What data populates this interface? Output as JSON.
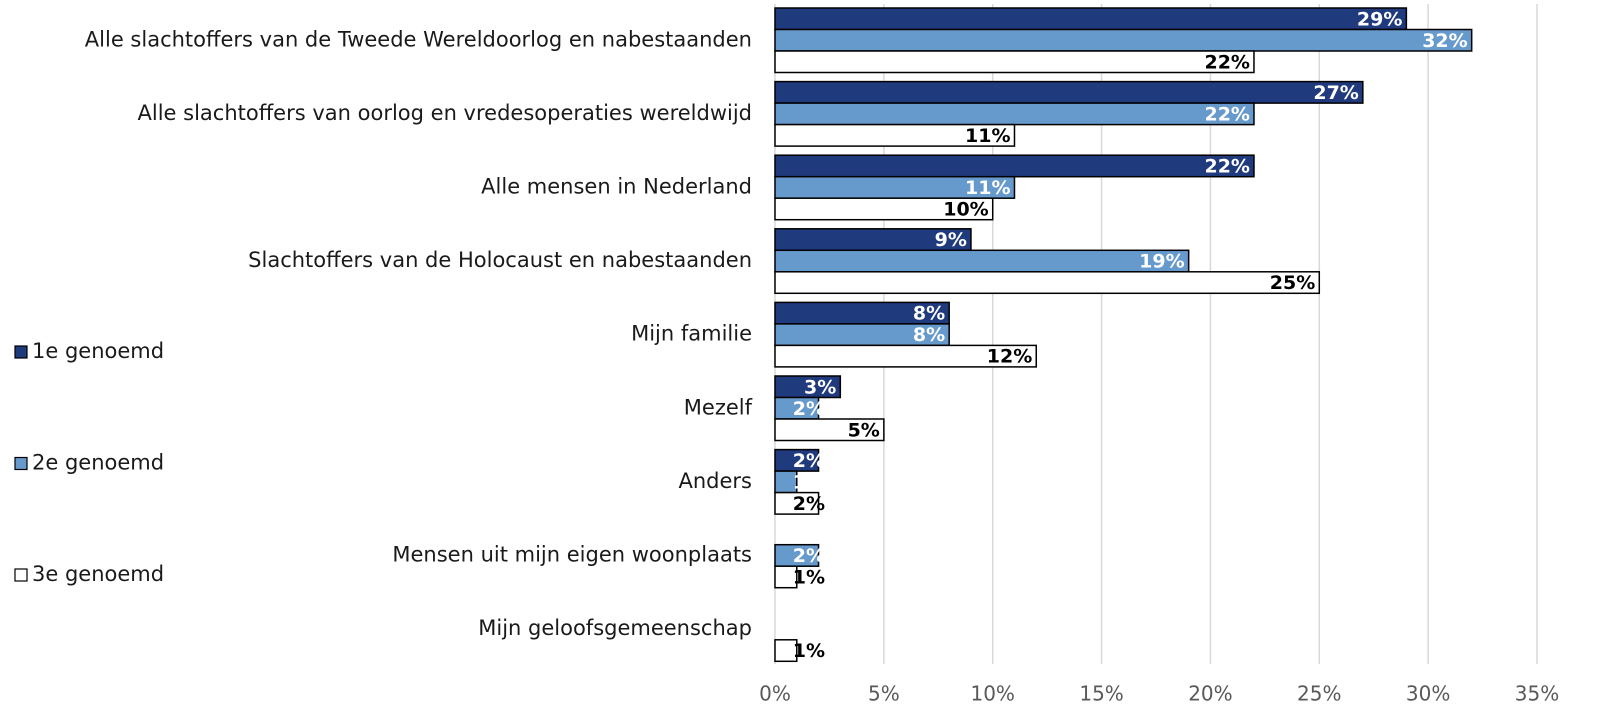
{
  "chart_data": {
    "type": "bar",
    "orientation": "horizontal",
    "categories": [
      "Alle slachtoffers van de Tweede Wereldoorlog en nabestaanden",
      "Alle slachtoffers van oorlog en vredesoperaties wereldwijd",
      "Alle mensen in Nederland",
      "Slachtoffers van de Holocaust en nabestaanden",
      "Mijn familie",
      "Mezelf",
      "Anders",
      "Mensen uit mijn eigen woonplaats",
      "Mijn geloofsgemeenschap"
    ],
    "series": [
      {
        "name": "1e genoemd",
        "color": "#203a7e",
        "values": [
          29,
          27,
          22,
          9,
          8,
          3,
          2,
          null,
          null
        ],
        "value_labels": [
          "29%",
          "27%",
          "22%",
          "9%",
          "8%",
          "3%",
          "2%",
          null,
          null
        ]
      },
      {
        "name": "2e genoemd",
        "color": "#6699cc",
        "values": [
          32,
          22,
          11,
          19,
          8,
          2,
          1,
          2,
          null
        ],
        "value_labels": [
          "32%",
          "22%",
          "11%",
          "19%",
          "8%",
          "2%",
          "1%",
          "2%",
          null
        ]
      },
      {
        "name": "3e genoemd",
        "color": "#ffffff",
        "values": [
          22,
          11,
          10,
          25,
          12,
          5,
          2,
          1,
          1
        ],
        "value_labels": [
          "22%",
          "11%",
          "10%",
          "25%",
          "12%",
          "5%",
          "2%",
          "1%",
          "1%"
        ]
      }
    ],
    "xlim": [
      0,
      35
    ],
    "xticks": [
      {
        "value": 0,
        "label": "0%"
      },
      {
        "value": 5,
        "label": "5%"
      },
      {
        "value": 10,
        "label": "10%"
      },
      {
        "value": 15,
        "label": "15%"
      },
      {
        "value": 20,
        "label": "20%"
      },
      {
        "value": 25,
        "label": "25%"
      },
      {
        "value": 30,
        "label": "30%"
      },
      {
        "value": 35,
        "label": "35%"
      }
    ],
    "grid": true,
    "legend": "left"
  }
}
